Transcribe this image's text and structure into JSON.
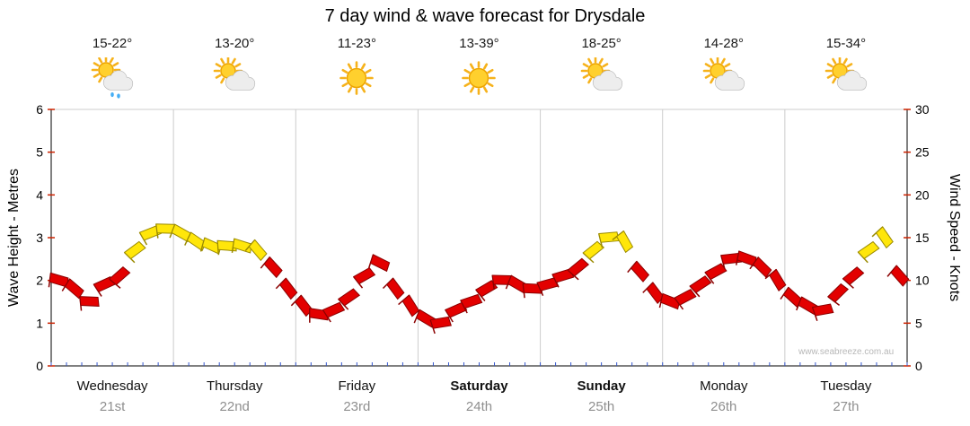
{
  "title": "7 day wind & wave forecast for Drysdale",
  "watermark": "www.seabreeze.com.au",
  "days": [
    {
      "name": "Wednesday",
      "date": "21st",
      "temp": "15-22°",
      "icon": "sun-cloud-rain",
      "bold": false
    },
    {
      "name": "Thursday",
      "date": "22nd",
      "temp": "13-20°",
      "icon": "sun-cloud",
      "bold": false
    },
    {
      "name": "Friday",
      "date": "23rd",
      "temp": "11-23°",
      "icon": "sunny",
      "bold": false
    },
    {
      "name": "Saturday",
      "date": "24th",
      "temp": "13-39°",
      "icon": "sunny",
      "bold": true
    },
    {
      "name": "Sunday",
      "date": "25th",
      "temp": "18-25°",
      "icon": "sun-cloud",
      "bold": true
    },
    {
      "name": "Monday",
      "date": "26th",
      "temp": "14-28°",
      "icon": "sun-cloud",
      "bold": false
    },
    {
      "name": "Tuesday",
      "date": "27th",
      "temp": "15-34°",
      "icon": "sun-cloud",
      "bold": false
    }
  ],
  "axes": {
    "left_label": "Wave Height - Metres",
    "left_ticks": [
      0,
      1,
      2,
      3,
      4,
      5,
      6
    ],
    "left_max": 6,
    "right_label": "Wind Speed - Knots",
    "right_ticks": [
      0,
      5,
      10,
      15,
      20,
      25,
      30
    ],
    "right_max": 30
  },
  "colors": {
    "flag_red": "#e30000",
    "flag_red_outline": "#8b0000",
    "flag_yellow": "#ffe60a",
    "flag_yellow_outline": "#9a8a00",
    "grid": "#cccccc",
    "axis": "#000000",
    "tick_y": "#cc2200",
    "tick_x": "#3355cc",
    "date_text": "#8f8f8f",
    "watermark_text": "#b7b7b7"
  },
  "chart_data": {
    "type": "line",
    "title": "7 day wind & wave forecast for Drysdale",
    "x_categories": [
      "Wednesday 21st",
      "Thursday 22nd",
      "Friday 23rd",
      "Saturday 24th",
      "Sunday 25th",
      "Monday 26th",
      "Tuesday 27th"
    ],
    "ylabel_left": "Wave Height - Metres",
    "ylim_left": [
      0,
      6
    ],
    "ylabel_right": "Wind Speed - Knots",
    "ylim_right": [
      0,
      30
    ],
    "legend": "none",
    "grid": "vertical lines at day boundaries",
    "series": [
      {
        "name": "Wind speed",
        "units": "knots",
        "symbol": "wind-flag",
        "points_per_day": 8,
        "yellow_at_or_above_knots": 13,
        "values": [
          10,
          9,
          7.5,
          9.5,
          10.5,
          13.5,
          15.5,
          16,
          15.5,
          14.5,
          14,
          14,
          14,
          13.5,
          11.5,
          9,
          7,
          6,
          6.5,
          8,
          10.5,
          12,
          9,
          7,
          5.5,
          5,
          6.5,
          7.5,
          9,
          10,
          9.5,
          9,
          9.5,
          10.5,
          11.5,
          13.5,
          15,
          14.5,
          11,
          8.5,
          7.5,
          8,
          9.5,
          11,
          12.5,
          12.5,
          11.5,
          10,
          8,
          7,
          6.5,
          8.5,
          10.5,
          13.5,
          15,
          10.5
        ]
      }
    ]
  }
}
